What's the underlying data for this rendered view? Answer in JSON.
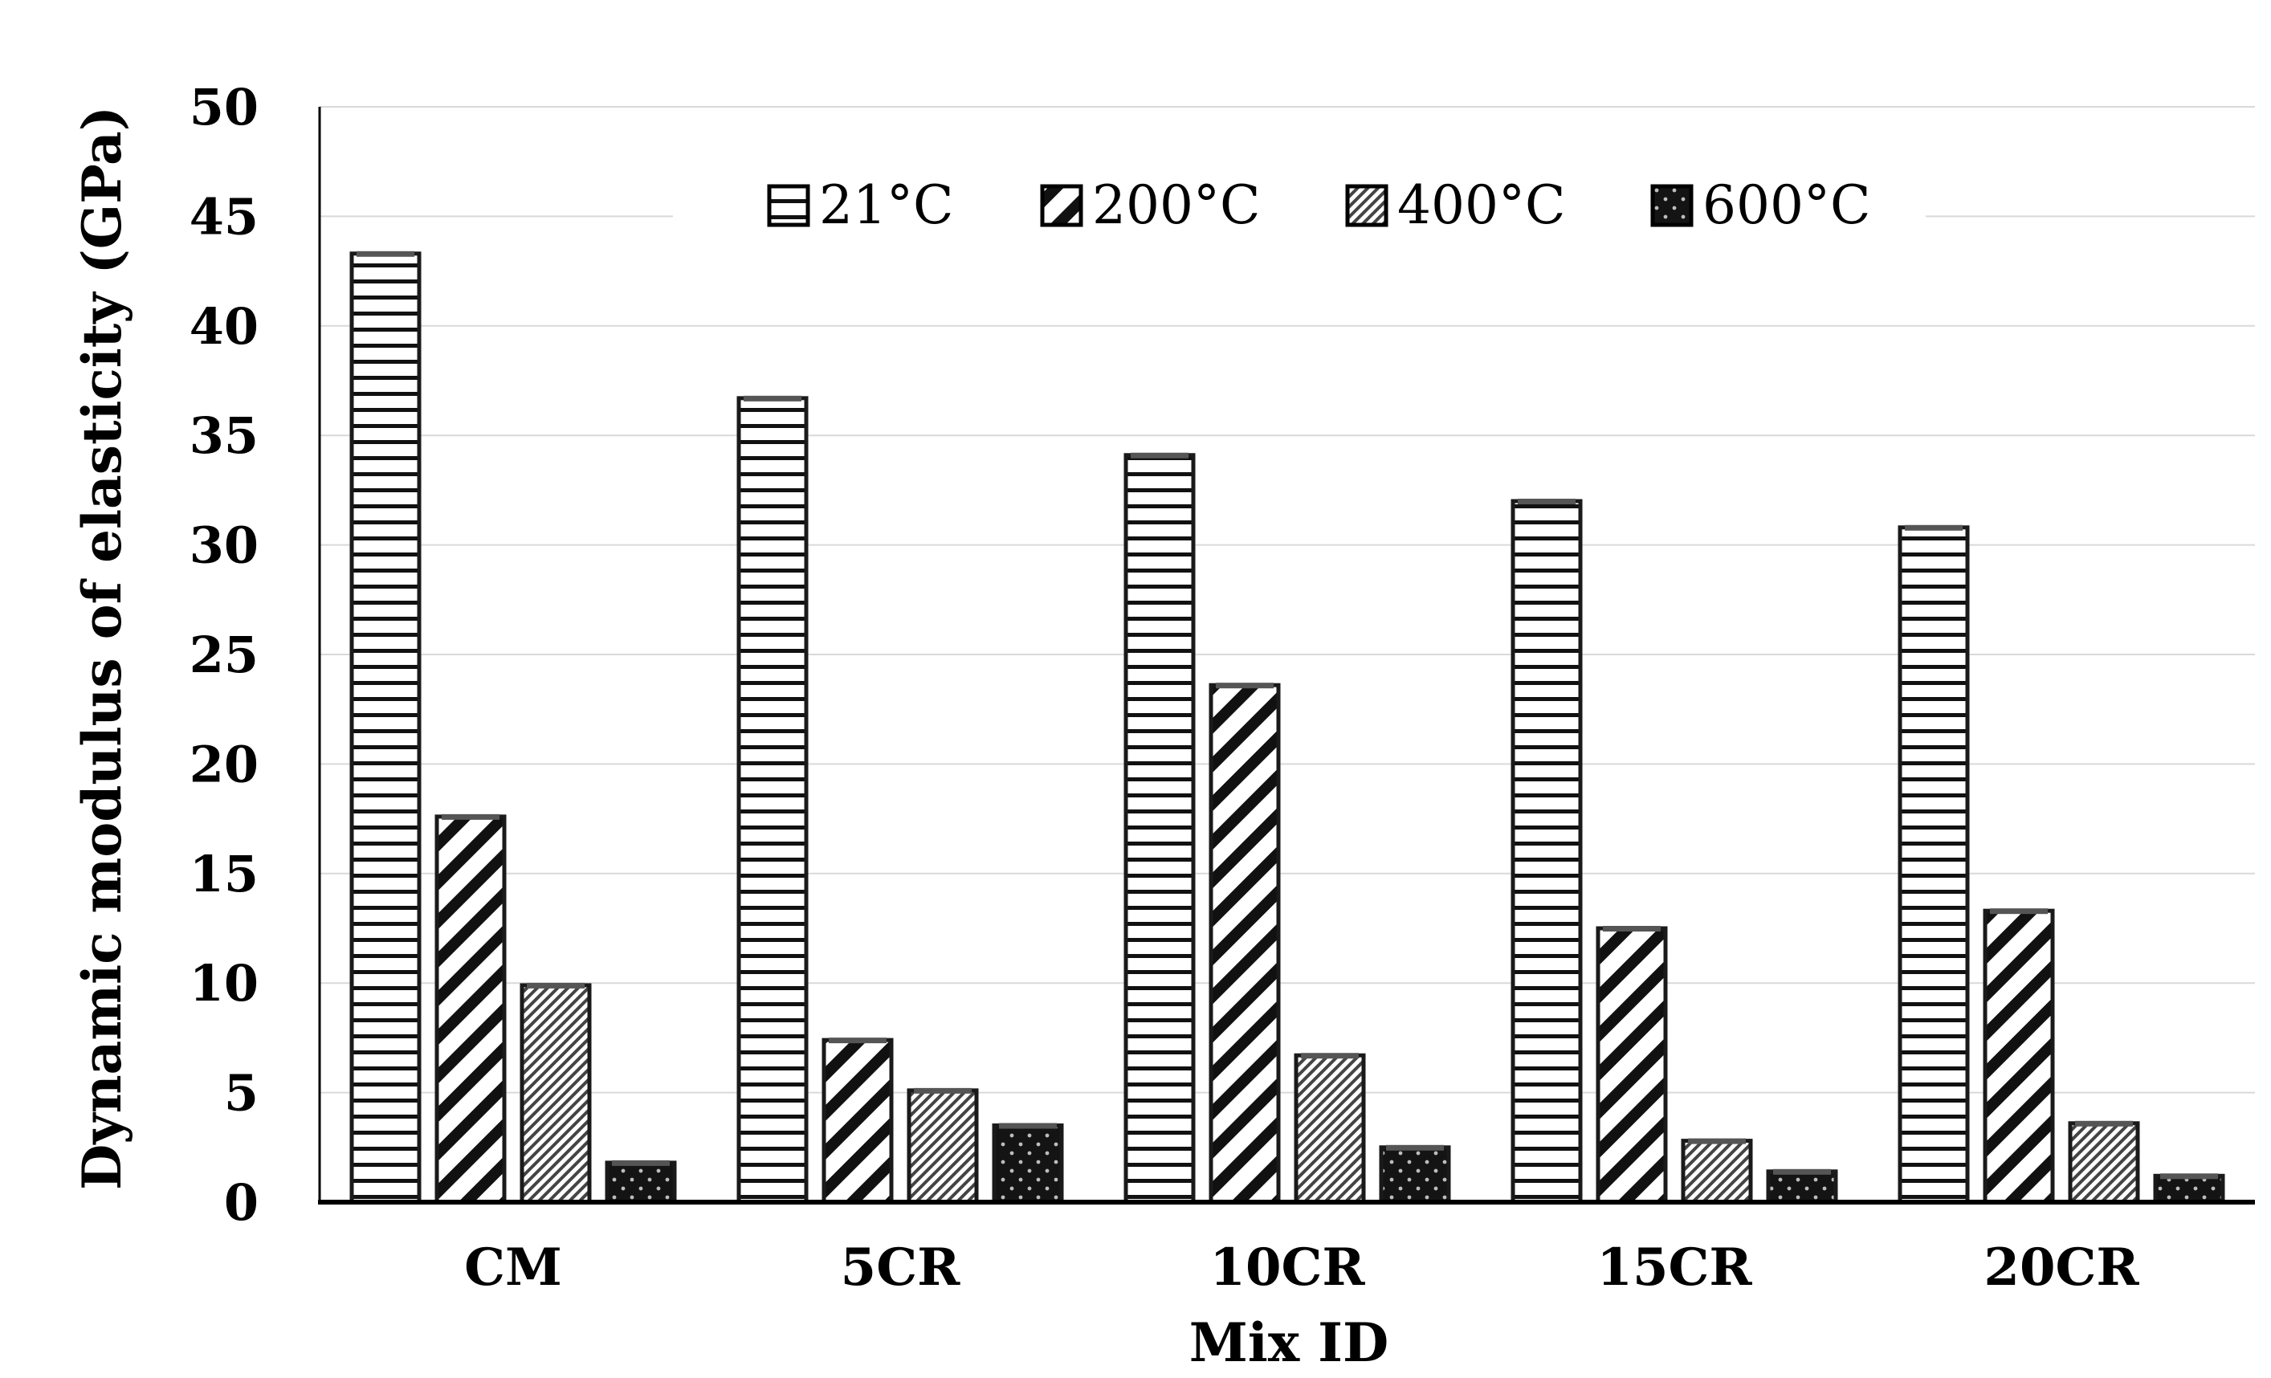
{
  "chart_data": {
    "type": "bar",
    "xlabel": "Mix ID",
    "ylabel": "Dynamic modulus of elasticity (GPa)",
    "ylim": [
      0,
      50
    ],
    "y_ticks": [
      "0",
      "5",
      "10",
      "15",
      "20",
      "25",
      "30",
      "35",
      "40",
      "45",
      "50"
    ],
    "grid": true,
    "legend_position": "top-center",
    "categories": [
      "CM",
      "5CR",
      "10CR",
      "15CR",
      "20CR"
    ],
    "series": [
      {
        "name": "21°C",
        "pattern": "horizontal-lines",
        "values": [
          43.3,
          36.7,
          34.1,
          32.0,
          30.8
        ]
      },
      {
        "name": "200°C",
        "pattern": "diagonal-lines",
        "values": [
          17.6,
          7.4,
          23.6,
          12.5,
          13.3
        ]
      },
      {
        "name": "400°C",
        "pattern": "dense-diagonal",
        "values": [
          9.9,
          5.1,
          6.7,
          2.8,
          3.6
        ]
      },
      {
        "name": "600°C",
        "pattern": "dark-dotted",
        "values": [
          1.8,
          3.5,
          2.5,
          1.4,
          1.2
        ]
      }
    ]
  },
  "colors": {
    "axis": "#000000",
    "grid": "#d9d9d9",
    "bar_stroke": "#1a1a1a"
  }
}
